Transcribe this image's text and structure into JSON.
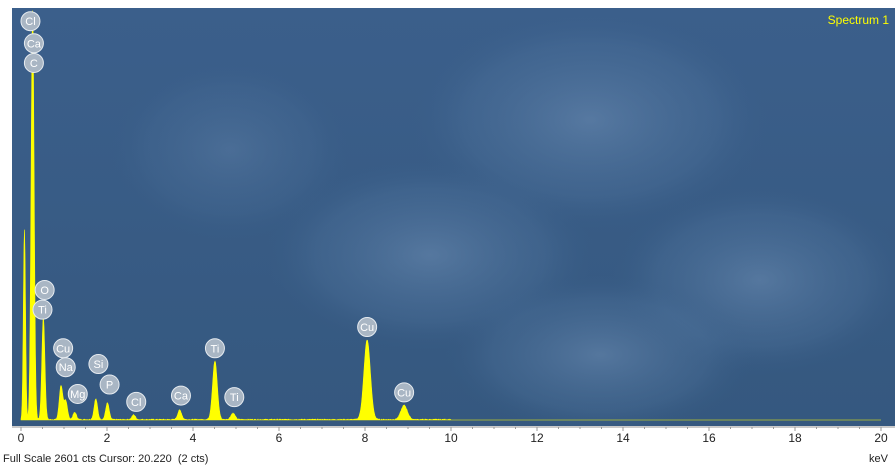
{
  "chart_data": {
    "type": "area",
    "title": "Spectrum 1",
    "xlabel": "keV",
    "xlim": [
      0,
      20
    ],
    "x_ticks": [
      "0",
      "2",
      "4",
      "6",
      "8",
      "10",
      "12",
      "14",
      "16",
      "18",
      "20"
    ],
    "full_scale_cts": 2601,
    "status": "Full Scale 2601 cts Cursor: 20.220  (2 cts)",
    "fill_color": "#ffff00",
    "background_color": "#3a5f8a",
    "peaks": [
      {
        "energy": 0.08,
        "cts": 1210,
        "width": 0.025
      },
      {
        "energy": 0.27,
        "cts": 2601,
        "width": 0.035
      },
      {
        "energy": 0.52,
        "cts": 650,
        "width": 0.035
      },
      {
        "energy": 0.93,
        "cts": 215,
        "width": 0.04
      },
      {
        "energy": 1.04,
        "cts": 120,
        "width": 0.04
      },
      {
        "energy": 1.25,
        "cts": 45,
        "width": 0.04
      },
      {
        "energy": 1.74,
        "cts": 130,
        "width": 0.04
      },
      {
        "energy": 2.01,
        "cts": 105,
        "width": 0.04
      },
      {
        "energy": 2.62,
        "cts": 30,
        "width": 0.04
      },
      {
        "energy": 3.69,
        "cts": 60,
        "width": 0.045
      },
      {
        "energy": 4.51,
        "cts": 370,
        "width": 0.055
      },
      {
        "energy": 4.93,
        "cts": 40,
        "width": 0.05
      },
      {
        "energy": 8.05,
        "cts": 505,
        "width": 0.075
      },
      {
        "energy": 8.91,
        "cts": 90,
        "width": 0.075
      }
    ],
    "element_labels": [
      {
        "symbol": "Cl",
        "energy": 0.22,
        "cts": 2530
      },
      {
        "symbol": "Ca",
        "energy": 0.3,
        "cts": 2390
      },
      {
        "symbol": "C",
        "energy": 0.3,
        "cts": 2265
      },
      {
        "symbol": "O",
        "energy": 0.55,
        "cts": 825
      },
      {
        "symbol": "Ti",
        "energy": 0.5,
        "cts": 700
      },
      {
        "symbol": "Cu",
        "energy": 0.98,
        "cts": 455
      },
      {
        "symbol": "Na",
        "energy": 1.04,
        "cts": 335
      },
      {
        "symbol": "Mg",
        "energy": 1.32,
        "cts": 165
      },
      {
        "symbol": "Si",
        "energy": 1.8,
        "cts": 355
      },
      {
        "symbol": "P",
        "energy": 2.06,
        "cts": 225
      },
      {
        "symbol": "Cl",
        "energy": 2.68,
        "cts": 115
      },
      {
        "symbol": "Ca",
        "energy": 3.72,
        "cts": 155
      },
      {
        "symbol": "Ti",
        "energy": 4.51,
        "cts": 455
      },
      {
        "symbol": "Ti",
        "energy": 4.96,
        "cts": 145
      },
      {
        "symbol": "Cu",
        "energy": 8.05,
        "cts": 590
      },
      {
        "symbol": "Cu",
        "energy": 8.91,
        "cts": 175
      }
    ]
  }
}
